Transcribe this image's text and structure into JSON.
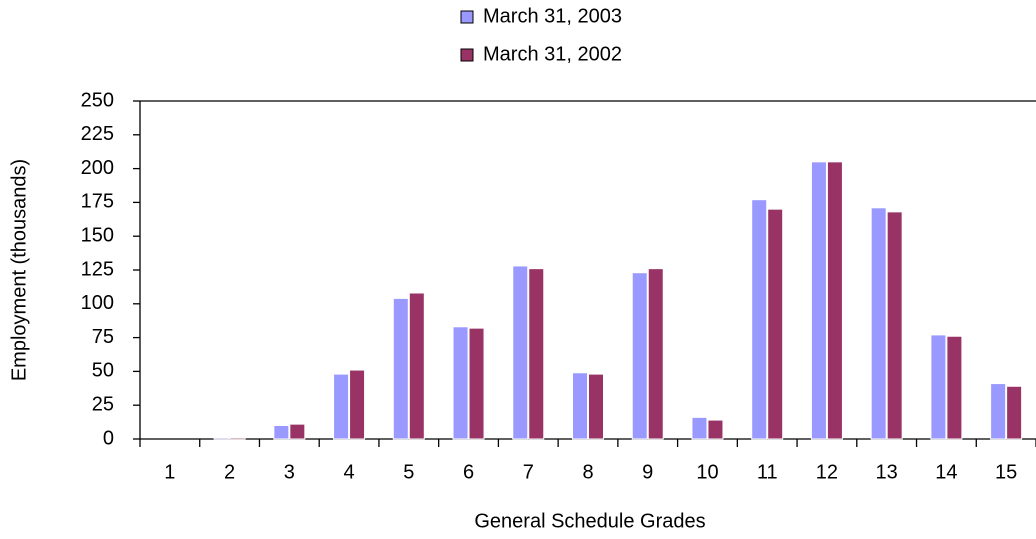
{
  "chart_data": {
    "type": "bar",
    "x_label": "General Schedule Grades",
    "y_label": "Employment (thousands)",
    "categories": [
      "1",
      "2",
      "3",
      "4",
      "5",
      "6",
      "7",
      "8",
      "9",
      "10",
      "11",
      "12",
      "13",
      "14",
      "15"
    ],
    "series": [
      {
        "name": "March 31, 2003",
        "color": "#9999ff",
        "values": [
          0,
          1,
          10,
          48,
          104,
          83,
          128,
          49,
          123,
          16,
          177,
          205,
          171,
          77,
          41
        ]
      },
      {
        "name": "March 31, 2002",
        "color": "#993366",
        "values": [
          0,
          1,
          11,
          51,
          108,
          82,
          126,
          48,
          126,
          14,
          170,
          205,
          168,
          76,
          39
        ]
      }
    ],
    "ylim": [
      0,
      250
    ],
    "yticks": [
      0,
      25,
      50,
      75,
      100,
      125,
      150,
      175,
      200,
      225,
      250
    ],
    "grid": false
  }
}
